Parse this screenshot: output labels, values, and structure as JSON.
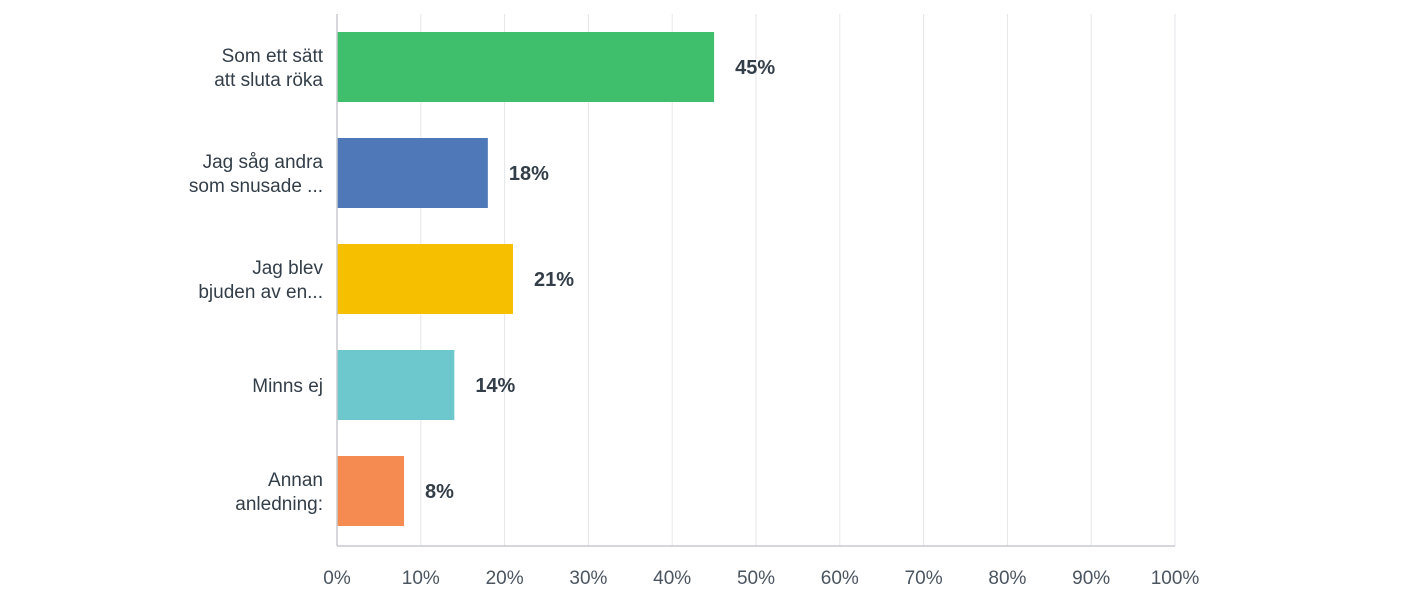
{
  "chart_data": {
    "type": "bar",
    "orientation": "horizontal",
    "categories": [
      [
        "Som ett sätt",
        "att sluta röka"
      ],
      [
        "Jag såg andra",
        "som snusade ..."
      ],
      [
        "Jag blev",
        "bjuden av en..."
      ],
      [
        "Minns ej"
      ],
      [
        "Annan",
        "anledning:"
      ]
    ],
    "values": [
      45,
      18,
      21,
      14,
      8
    ],
    "value_labels": [
      "45%",
      "18%",
      "21%",
      "14%",
      "8%"
    ],
    "colors": [
      "#3fbf6b",
      "#4e78b8",
      "#f6bf00",
      "#6cc8cc",
      "#f58b50"
    ],
    "xlim": [
      0,
      100
    ],
    "x_ticks": [
      0,
      10,
      20,
      30,
      40,
      50,
      60,
      70,
      80,
      90,
      100
    ],
    "x_tick_labels": [
      "0%",
      "10%",
      "20%",
      "30%",
      "40%",
      "50%",
      "60%",
      "70%",
      "80%",
      "90%",
      "100%"
    ],
    "grid": true,
    "legend": "none",
    "title": "",
    "xlabel": "",
    "ylabel": ""
  }
}
